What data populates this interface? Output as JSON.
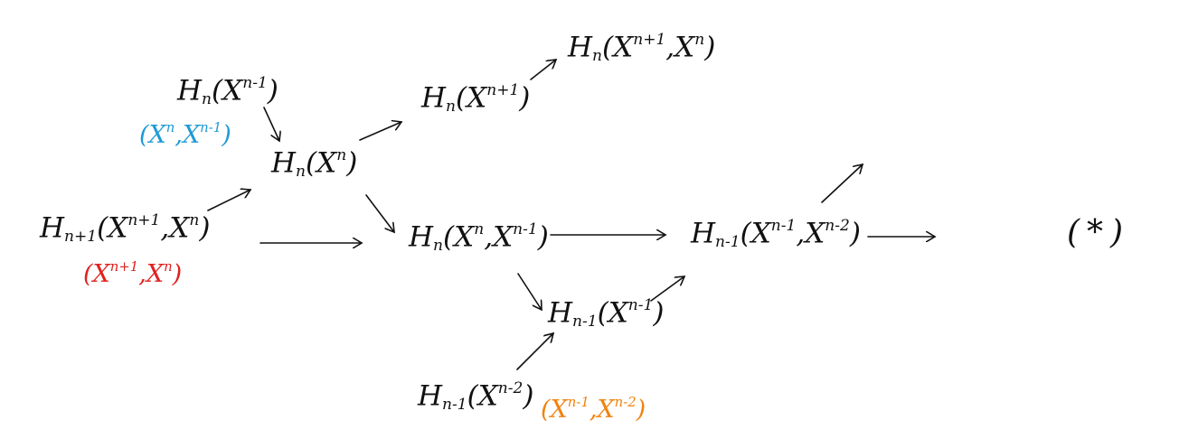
{
  "colors": {
    "ink": "#111111",
    "blue": "#1e9ad6",
    "red": "#e02020",
    "orange": "#f0830e"
  },
  "nodes": {
    "hn_xn_minus_1": {
      "op": "H",
      "op_sub": "n",
      "open": "(",
      "space": "X",
      "space_sup": "n-1",
      "close": ")"
    },
    "blue_note": {
      "open": "(",
      "space1": "X",
      "space1_sup": "n",
      "sep": ",",
      "space2": "X",
      "space2_sup": "n-1",
      "close": ")"
    },
    "hn1_xn1_xn": {
      "op": "H",
      "op_sub": "n+1",
      "open": "(",
      "space1": "X",
      "space1_sup": "n+1",
      "sep": ",",
      "space2": "X",
      "space2_sup": "n",
      "close": ")"
    },
    "red_note": {
      "open": "(",
      "space1": "X",
      "space1_sup": "n+1",
      "sep": ",",
      "space2": "X",
      "space2_sup": "n",
      "close": ")"
    },
    "hn_xn": {
      "op": "H",
      "op_sub": "n",
      "open": "(",
      "space": "X",
      "space_sup": "n",
      "close": ")"
    },
    "hn_xn_plus_1": {
      "op": "H",
      "op_sub": "n",
      "open": "(",
      "space": "X",
      "space_sup": "n+1",
      "close": ")"
    },
    "hn_xn1_xn": {
      "op": "H",
      "op_sub": "n",
      "open": "(",
      "space1": "X",
      "space1_sup": "n+1",
      "sep": ",",
      "space2": "X",
      "space2_sup": "n",
      "close": ")"
    },
    "hn_xn_xn1": {
      "op": "H",
      "op_sub": "n",
      "open": "(",
      "space1": "X",
      "space1_sup": "n",
      "sep": ",",
      "space2": "X",
      "space2_sup": "n-1",
      "close": ")"
    },
    "hn1_xn1": {
      "op": "H",
      "op_sub": "n-1",
      "open": "(",
      "space": "X",
      "space_sup": "n-1",
      "close": ")"
    },
    "hn1_xn2": {
      "op": "H",
      "op_sub": "n-1",
      "open": "(",
      "space": "X",
      "space_sup": "n-2",
      "close": ")"
    },
    "orange_note": {
      "open": "(",
      "space1": "X",
      "space1_sup": "n-1",
      "sep": ",",
      "space2": "X",
      "space2_sup": "n-2",
      "close": ")"
    },
    "hn1_xn1_xn2": {
      "op": "H",
      "op_sub": "n-1",
      "open": "(",
      "space1": "X",
      "space1_sup": "n-1",
      "sep": ",",
      "space2": "X",
      "space2_sup": "n-2",
      "close": ")"
    },
    "star_label": {
      "open": "(",
      "symbol": "*",
      "close": ")"
    }
  }
}
